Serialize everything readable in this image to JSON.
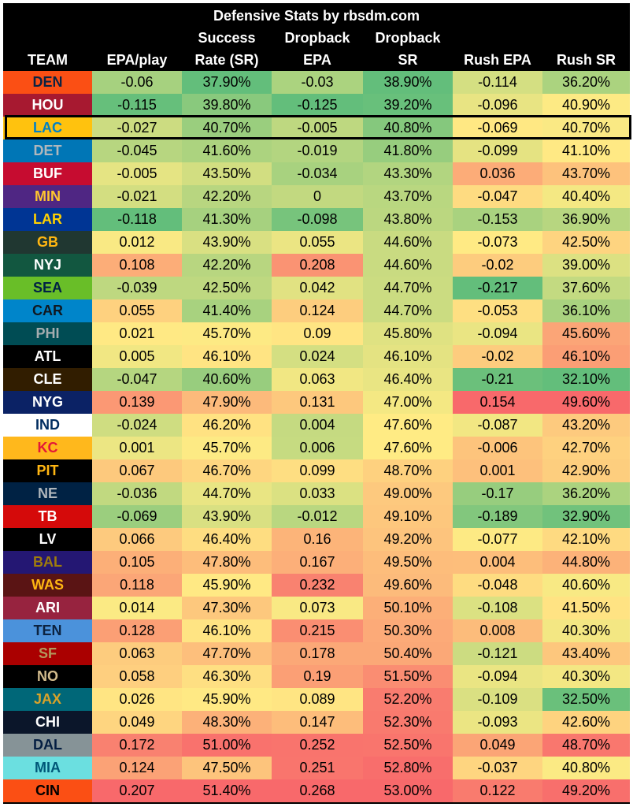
{
  "chart_data": {
    "type": "table",
    "title": "Defensive Stats by rbsdm.com",
    "columns": [
      {
        "key": "team",
        "lines": [
          "",
          "",
          "TEAM"
        ]
      },
      {
        "key": "epa",
        "lines": [
          "",
          "",
          "EPA/play"
        ]
      },
      {
        "key": "sr",
        "lines": [
          "",
          "Success",
          "Rate (SR)"
        ]
      },
      {
        "key": "dbepa",
        "lines": [
          "",
          "Dropback",
          "EPA"
        ]
      },
      {
        "key": "dbsr",
        "lines": [
          "",
          "Dropback",
          "SR"
        ]
      },
      {
        "key": "repa",
        "lines": [
          "",
          "",
          "Rush EPA"
        ]
      },
      {
        "key": "rsr",
        "lines": [
          "",
          "",
          "Rush SR"
        ]
      }
    ],
    "highlighted_team": "LAC",
    "rows": [
      {
        "team": "DEN",
        "epa": "-0.06",
        "sr": "37.90%",
        "dbepa": "-0.03",
        "dbsr": "38.90%",
        "repa": "-0.114",
        "rsr": "36.20%"
      },
      {
        "team": "HOU",
        "epa": "-0.115",
        "sr": "39.80%",
        "dbepa": "-0.125",
        "dbsr": "39.20%",
        "repa": "-0.096",
        "rsr": "40.90%"
      },
      {
        "team": "LAC",
        "epa": "-0.027",
        "sr": "40.70%",
        "dbepa": "-0.005",
        "dbsr": "40.80%",
        "repa": "-0.069",
        "rsr": "40.70%"
      },
      {
        "team": "DET",
        "epa": "-0.045",
        "sr": "41.60%",
        "dbepa": "-0.019",
        "dbsr": "41.80%",
        "repa": "-0.099",
        "rsr": "41.10%"
      },
      {
        "team": "BUF",
        "epa": "-0.005",
        "sr": "43.50%",
        "dbepa": "-0.034",
        "dbsr": "43.30%",
        "repa": "0.036",
        "rsr": "43.70%"
      },
      {
        "team": "MIN",
        "epa": "-0.021",
        "sr": "42.20%",
        "dbepa": "0",
        "dbsr": "43.70%",
        "repa": "-0.047",
        "rsr": "40.40%"
      },
      {
        "team": "LAR",
        "epa": "-0.118",
        "sr": "41.30%",
        "dbepa": "-0.098",
        "dbsr": "43.80%",
        "repa": "-0.153",
        "rsr": "36.90%"
      },
      {
        "team": "GB",
        "epa": "0.012",
        "sr": "43.90%",
        "dbepa": "0.055",
        "dbsr": "44.60%",
        "repa": "-0.073",
        "rsr": "42.50%"
      },
      {
        "team": "NYJ",
        "epa": "0.108",
        "sr": "42.20%",
        "dbepa": "0.208",
        "dbsr": "44.60%",
        "repa": "-0.02",
        "rsr": "39.00%"
      },
      {
        "team": "SEA",
        "epa": "-0.039",
        "sr": "42.50%",
        "dbepa": "0.042",
        "dbsr": "44.70%",
        "repa": "-0.217",
        "rsr": "37.60%"
      },
      {
        "team": "CAR",
        "epa": "0.055",
        "sr": "41.40%",
        "dbepa": "0.124",
        "dbsr": "44.70%",
        "repa": "-0.053",
        "rsr": "36.10%"
      },
      {
        "team": "PHI",
        "epa": "0.021",
        "sr": "45.70%",
        "dbepa": "0.09",
        "dbsr": "45.80%",
        "repa": "-0.094",
        "rsr": "45.60%"
      },
      {
        "team": "ATL",
        "epa": "0.005",
        "sr": "46.10%",
        "dbepa": "0.024",
        "dbsr": "46.10%",
        "repa": "-0.02",
        "rsr": "46.10%"
      },
      {
        "team": "CLE",
        "epa": "-0.047",
        "sr": "40.60%",
        "dbepa": "0.063",
        "dbsr": "46.40%",
        "repa": "-0.21",
        "rsr": "32.10%"
      },
      {
        "team": "NYG",
        "epa": "0.139",
        "sr": "47.90%",
        "dbepa": "0.131",
        "dbsr": "47.00%",
        "repa": "0.154",
        "rsr": "49.60%"
      },
      {
        "team": "IND",
        "epa": "-0.024",
        "sr": "46.20%",
        "dbepa": "0.004",
        "dbsr": "47.60%",
        "repa": "-0.087",
        "rsr": "43.20%"
      },
      {
        "team": "KC",
        "epa": "0.001",
        "sr": "45.70%",
        "dbepa": "0.006",
        "dbsr": "47.60%",
        "repa": "-0.006",
        "rsr": "42.70%"
      },
      {
        "team": "PIT",
        "epa": "0.067",
        "sr": "46.70%",
        "dbepa": "0.099",
        "dbsr": "48.70%",
        "repa": "0.001",
        "rsr": "42.90%"
      },
      {
        "team": "NE",
        "epa": "-0.036",
        "sr": "44.70%",
        "dbepa": "0.033",
        "dbsr": "49.00%",
        "repa": "-0.17",
        "rsr": "36.20%"
      },
      {
        "team": "TB",
        "epa": "-0.069",
        "sr": "43.90%",
        "dbepa": "-0.012",
        "dbsr": "49.10%",
        "repa": "-0.189",
        "rsr": "32.90%"
      },
      {
        "team": "LV",
        "epa": "0.066",
        "sr": "46.40%",
        "dbepa": "0.16",
        "dbsr": "49.20%",
        "repa": "-0.077",
        "rsr": "42.10%"
      },
      {
        "team": "BAL",
        "epa": "0.105",
        "sr": "47.80%",
        "dbepa": "0.167",
        "dbsr": "49.50%",
        "repa": "0.004",
        "rsr": "44.80%"
      },
      {
        "team": "WAS",
        "epa": "0.118",
        "sr": "45.90%",
        "dbepa": "0.232",
        "dbsr": "49.60%",
        "repa": "-0.048",
        "rsr": "40.60%"
      },
      {
        "team": "ARI",
        "epa": "0.014",
        "sr": "47.30%",
        "dbepa": "0.073",
        "dbsr": "50.10%",
        "repa": "-0.108",
        "rsr": "41.50%"
      },
      {
        "team": "TEN",
        "epa": "0.128",
        "sr": "46.10%",
        "dbepa": "0.215",
        "dbsr": "50.30%",
        "repa": "0.008",
        "rsr": "40.30%"
      },
      {
        "team": "SF",
        "epa": "0.063",
        "sr": "47.70%",
        "dbepa": "0.178",
        "dbsr": "50.40%",
        "repa": "-0.121",
        "rsr": "43.40%"
      },
      {
        "team": "NO",
        "epa": "0.058",
        "sr": "46.30%",
        "dbepa": "0.19",
        "dbsr": "51.50%",
        "repa": "-0.094",
        "rsr": "40.30%"
      },
      {
        "team": "JAX",
        "epa": "0.026",
        "sr": "45.90%",
        "dbepa": "0.089",
        "dbsr": "52.20%",
        "repa": "-0.109",
        "rsr": "32.50%"
      },
      {
        "team": "CHI",
        "epa": "0.049",
        "sr": "48.30%",
        "dbepa": "0.147",
        "dbsr": "52.30%",
        "repa": "-0.093",
        "rsr": "42.60%"
      },
      {
        "team": "DAL",
        "epa": "0.172",
        "sr": "51.00%",
        "dbepa": "0.252",
        "dbsr": "52.50%",
        "repa": "0.049",
        "rsr": "48.70%"
      },
      {
        "team": "MIA",
        "epa": "0.124",
        "sr": "47.50%",
        "dbepa": "0.251",
        "dbsr": "52.80%",
        "repa": "-0.037",
        "rsr": "40.80%"
      },
      {
        "team": "CIN",
        "epa": "0.207",
        "sr": "51.40%",
        "dbepa": "0.268",
        "dbsr": "53.00%",
        "repa": "0.122",
        "rsr": "49.20%"
      }
    ]
  },
  "team_colors": {
    "DEN": {
      "bg": "#FB4F14",
      "fg": "#0A2343"
    },
    "HOU": {
      "bg": "#A71930",
      "fg": "#FFFFFF"
    },
    "LAC": {
      "bg": "#FFC20E",
      "fg": "#0080C6"
    },
    "DET": {
      "bg": "#0076B6",
      "fg": "#B0B7BC"
    },
    "BUF": {
      "bg": "#C60C30",
      "fg": "#FFFFFF"
    },
    "MIN": {
      "bg": "#4F2683",
      "fg": "#FFC62F"
    },
    "LAR": {
      "bg": "#003594",
      "fg": "#FFD100"
    },
    "GB": {
      "bg": "#203731",
      "fg": "#FFB612"
    },
    "NYJ": {
      "bg": "#125740",
      "fg": "#FFFFFF"
    },
    "SEA": {
      "bg": "#69BE28",
      "fg": "#002244"
    },
    "CAR": {
      "bg": "#0085CA",
      "fg": "#101820"
    },
    "PHI": {
      "bg": "#004C54",
      "fg": "#A5ACAF"
    },
    "ATL": {
      "bg": "#000000",
      "fg": "#FFFFFF"
    },
    "CLE": {
      "bg": "#311D00",
      "fg": "#FFFFFF"
    },
    "NYG": {
      "bg": "#0B2265",
      "fg": "#FFFFFF"
    },
    "IND": {
      "bg": "#FFFFFF",
      "fg": "#002C5F"
    },
    "KC": {
      "bg": "#FFB81C",
      "fg": "#E31837"
    },
    "PIT": {
      "bg": "#000000",
      "fg": "#FFB612"
    },
    "NE": {
      "bg": "#002244",
      "fg": "#B0B7BC"
    },
    "TB": {
      "bg": "#D50A0A",
      "fg": "#FFFFFF"
    },
    "LV": {
      "bg": "#000000",
      "fg": "#FFFFFF"
    },
    "BAL": {
      "bg": "#241773",
      "fg": "#9E7C0C"
    },
    "WAS": {
      "bg": "#5A1414",
      "fg": "#FFB612"
    },
    "ARI": {
      "bg": "#97233F",
      "fg": "#FFFFFF"
    },
    "TEN": {
      "bg": "#4B92DB",
      "fg": "#0C2340"
    },
    "SF": {
      "bg": "#AA0000",
      "fg": "#B3995D"
    },
    "NO": {
      "bg": "#000000",
      "fg": "#D3BC8D"
    },
    "JAX": {
      "bg": "#006778",
      "fg": "#D7A22A"
    },
    "CHI": {
      "bg": "#0B162A",
      "fg": "#FFFFFF"
    },
    "DAL": {
      "bg": "#869397",
      "fg": "#041E42"
    },
    "MIA": {
      "bg": "#6BDFE0",
      "fg": "#005778"
    },
    "CIN": {
      "bg": "#FB4F14",
      "fg": "#000000"
    }
  },
  "color_scale": {
    "good": "#63BE7B",
    "mid": "#FFEB84",
    "bad": "#F8696B"
  }
}
